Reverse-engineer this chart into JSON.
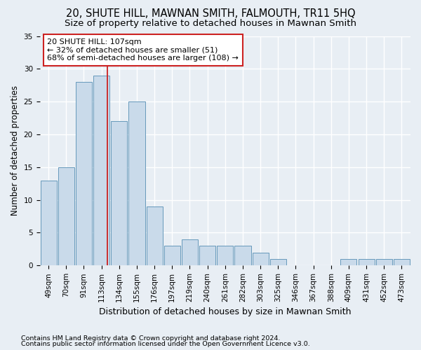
{
  "title": "20, SHUTE HILL, MAWNAN SMITH, FALMOUTH, TR11 5HQ",
  "subtitle": "Size of property relative to detached houses in Mawnan Smith",
  "xlabel": "Distribution of detached houses by size in Mawnan Smith",
  "ylabel": "Number of detached properties",
  "categories": [
    "49sqm",
    "70sqm",
    "91sqm",
    "113sqm",
    "134sqm",
    "155sqm",
    "176sqm",
    "197sqm",
    "219sqm",
    "240sqm",
    "261sqm",
    "282sqm",
    "303sqm",
    "325sqm",
    "346sqm",
    "367sqm",
    "388sqm",
    "409sqm",
    "431sqm",
    "452sqm",
    "473sqm"
  ],
  "values": [
    13,
    15,
    28,
    29,
    22,
    25,
    9,
    3,
    4,
    3,
    3,
    3,
    2,
    1,
    0,
    0,
    0,
    1,
    1,
    1,
    1
  ],
  "bar_color": "#c9daea",
  "bar_edge_color": "#6699bb",
  "bar_linewidth": 0.7,
  "vline_x": 3.33,
  "vline_color": "#cc2222",
  "annotation_text": "20 SHUTE HILL: 107sqm\n← 32% of detached houses are smaller (51)\n68% of semi-detached houses are larger (108) →",
  "annotation_box_facecolor": "#ffffff",
  "annotation_box_edgecolor": "#cc2222",
  "annotation_fontsize": 8,
  "ylim": [
    0,
    35
  ],
  "yticks": [
    0,
    5,
    10,
    15,
    20,
    25,
    30,
    35
  ],
  "title_fontsize": 10.5,
  "subtitle_fontsize": 9.5,
  "xlabel_fontsize": 9,
  "ylabel_fontsize": 8.5,
  "tick_fontsize": 7.5,
  "footer_line1": "Contains HM Land Registry data © Crown copyright and database right 2024.",
  "footer_line2": "Contains public sector information licensed under the Open Government Licence v3.0.",
  "footer_fontsize": 6.8,
  "background_color": "#e8eef4",
  "plot_bg_color": "#e8eef4",
  "grid_color": "#ffffff",
  "grid_linewidth": 1.0
}
